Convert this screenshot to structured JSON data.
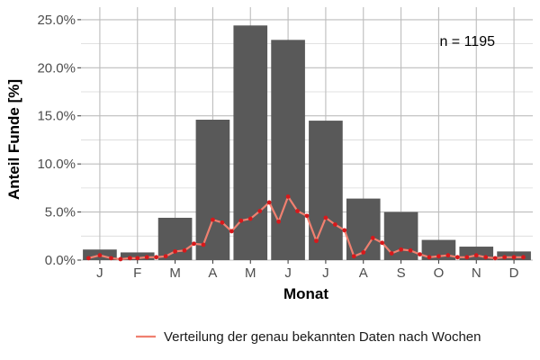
{
  "chart_data": {
    "type": "bar",
    "xlabel": "Monat",
    "ylabel": "Anteil Funde [%]",
    "categories": [
      "J",
      "F",
      "M",
      "A",
      "M",
      "J",
      "J",
      "A",
      "S",
      "O",
      "N",
      "D"
    ],
    "values": [
      1.1,
      0.8,
      4.4,
      14.6,
      24.4,
      22.9,
      14.5,
      6.4,
      5.0,
      2.1,
      1.4,
      0.9
    ],
    "bar_color": "#595959",
    "ylim": [
      0,
      26.3
    ],
    "yticks": [
      0,
      5,
      10,
      15,
      20,
      25
    ],
    "ytick_labels": [
      "0.0%",
      "5.0%",
      "10.0%",
      "15.0%",
      "20.0%",
      "25.0%"
    ],
    "grid": true,
    "annotation": "n = 1195",
    "overlay_series": {
      "type": "line",
      "name": "Verteilung der genau bekannten Daten nach Wochen",
      "color": "#f08070",
      "point_color": "#d7191c",
      "week_positions": [
        0.7,
        1.0,
        1.3,
        1.55,
        1.8,
        2.0,
        2.25,
        2.5,
        2.75,
        3.0,
        3.25,
        3.5,
        3.75,
        4.0,
        4.25,
        4.5,
        4.75,
        5.0,
        5.25,
        5.5,
        5.75,
        6.0,
        6.25,
        6.5,
        6.75,
        7.0,
        7.25,
        7.5,
        7.75,
        8.0,
        8.25,
        8.5,
        8.75,
        9.0,
        9.25,
        9.5,
        9.75,
        10.0,
        10.25,
        10.5,
        10.75,
        11.0,
        11.25,
        11.5,
        11.75,
        12.0,
        12.25
      ],
      "values": [
        0.2,
        0.5,
        0.2,
        0.1,
        0.2,
        0.2,
        0.3,
        0.3,
        0.4,
        0.9,
        1.0,
        1.7,
        1.6,
        4.2,
        3.9,
        3.0,
        4.1,
        4.3,
        5.1,
        6.0,
        4.0,
        6.6,
        5.1,
        4.6,
        2.0,
        4.4,
        3.7,
        3.1,
        0.4,
        0.8,
        2.3,
        1.8,
        0.7,
        1.1,
        1.0,
        0.6,
        0.3,
        0.4,
        0.5,
        0.3,
        0.3,
        0.5,
        0.3,
        0.2,
        0.3,
        0.3,
        0.3
      ]
    },
    "legend": {
      "position": "bottom",
      "label": "Verteilung der genau bekannten Daten nach Wochen"
    }
  }
}
